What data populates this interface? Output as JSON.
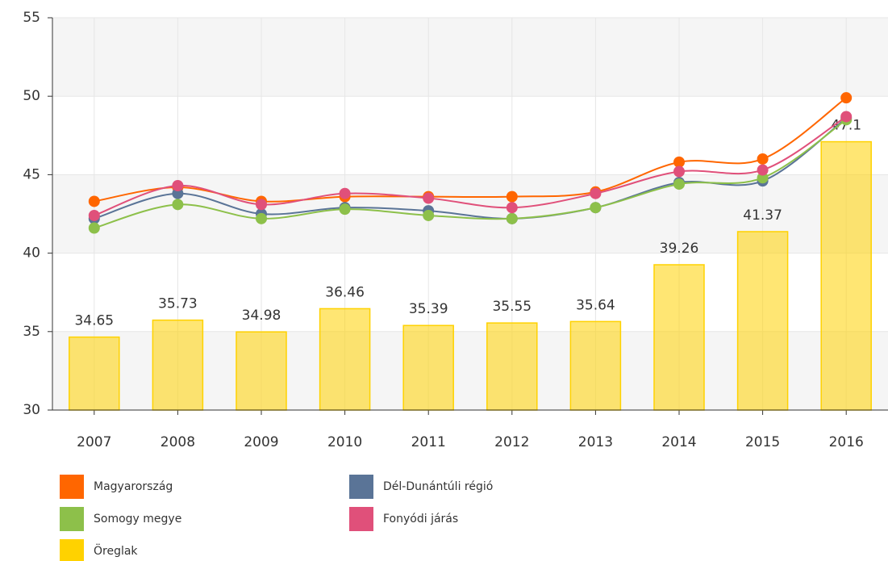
{
  "chart_data": {
    "type": "combo",
    "categories": [
      "2007",
      "2008",
      "2009",
      "2010",
      "2011",
      "2012",
      "2013",
      "2014",
      "2015",
      "2016"
    ],
    "ylim": [
      30,
      55
    ],
    "yticks": [
      30,
      35,
      40,
      45,
      50,
      55
    ],
    "grid": true,
    "series": [
      {
        "name": "Magyarország",
        "type": "line",
        "color": "#ff6600",
        "values": [
          43.3,
          44.2,
          43.3,
          43.6,
          43.6,
          43.6,
          43.9,
          45.8,
          46.0,
          49.9
        ]
      },
      {
        "name": "Dél-Dunántúli régió",
        "type": "line",
        "color": "#5a7497",
        "values": [
          42.2,
          43.8,
          42.5,
          42.9,
          42.7,
          42.2,
          42.9,
          44.5,
          44.6,
          48.6
        ]
      },
      {
        "name": "Somogy megye",
        "type": "line",
        "color": "#8dc04a",
        "values": [
          41.6,
          43.1,
          42.2,
          42.8,
          42.4,
          42.2,
          42.9,
          44.4,
          44.8,
          48.5
        ]
      },
      {
        "name": "Fonyódi járás",
        "type": "line",
        "color": "#e0507a",
        "values": [
          42.4,
          44.3,
          43.1,
          43.8,
          43.5,
          42.9,
          43.8,
          45.2,
          45.3,
          48.7
        ]
      },
      {
        "name": "Öreglak",
        "type": "bar",
        "color": "#ffd200",
        "values": [
          34.65,
          35.73,
          34.98,
          36.46,
          35.39,
          35.55,
          35.64,
          39.26,
          41.37,
          47.1
        ]
      }
    ]
  }
}
